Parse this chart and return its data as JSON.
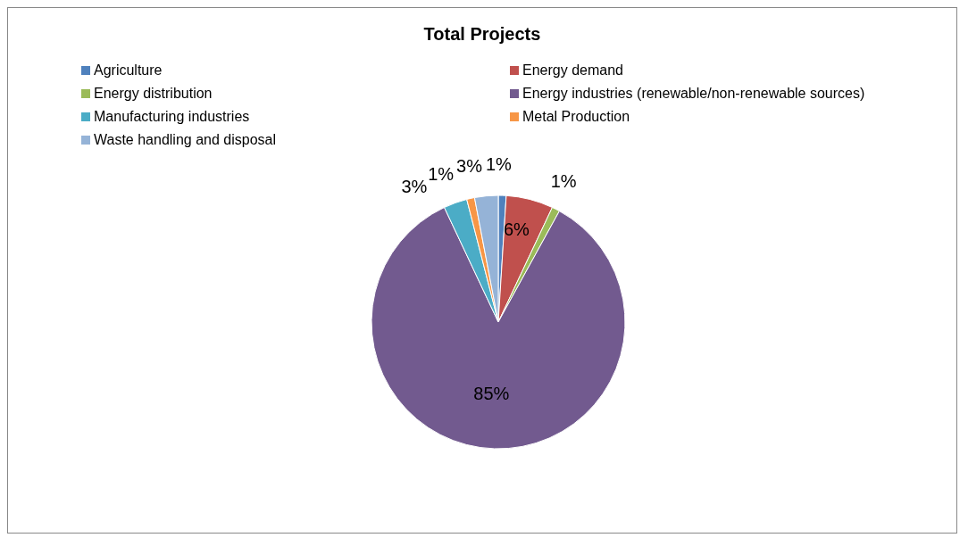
{
  "chart_data": {
    "type": "pie",
    "title": "Total Projects",
    "categories": [
      "Agriculture",
      "Energy demand",
      "Energy distribution",
      "Energy industries (renewable/non-renewable sources)",
      "Manufacturing industries",
      "Metal Production",
      "Waste handling and disposal"
    ],
    "values": [
      1,
      6,
      1,
      85,
      3,
      1,
      3
    ],
    "value_labels": [
      "1%",
      "6%",
      "1%",
      "85%",
      "3%",
      "1%",
      "3%"
    ],
    "colors": [
      "#4f81bd",
      "#c0504d",
      "#9bbb59",
      "#725a8f",
      "#4bacc6",
      "#f79646",
      "#95b3d7"
    ],
    "legend": "top"
  }
}
